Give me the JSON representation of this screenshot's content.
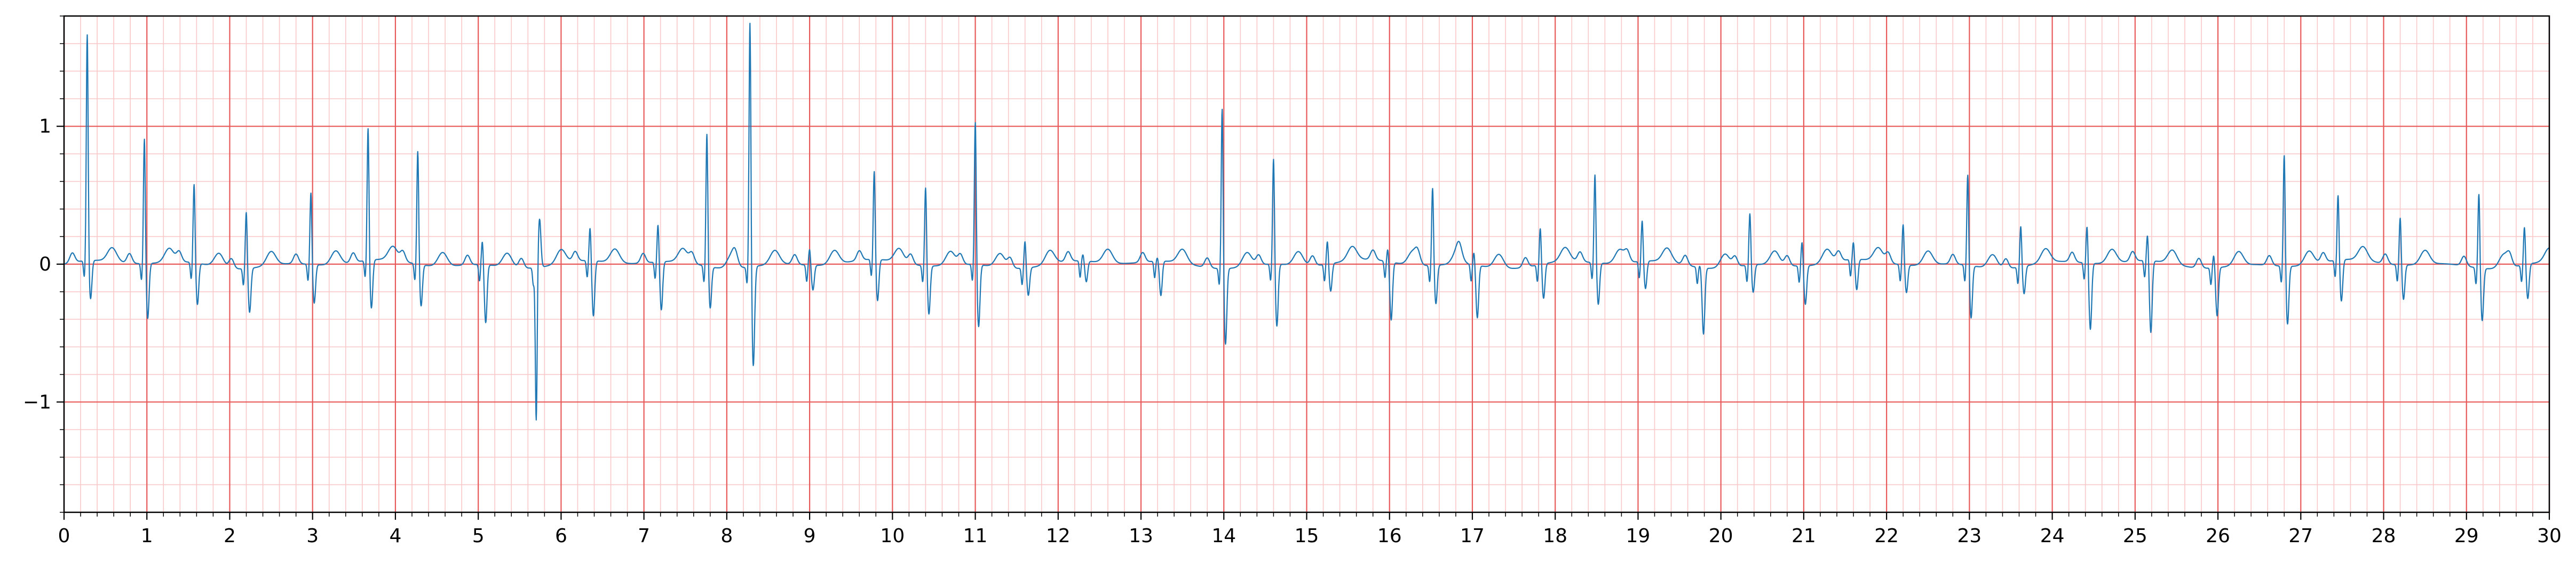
{
  "chart_data": {
    "type": "line",
    "title": "",
    "xlabel": "",
    "ylabel": "",
    "xlim": [
      0,
      30
    ],
    "ylim": [
      -1.8,
      1.8
    ],
    "x_ticks": [
      0,
      1,
      2,
      3,
      4,
      5,
      6,
      7,
      8,
      9,
      10,
      11,
      12,
      13,
      14,
      15,
      16,
      17,
      18,
      19,
      20,
      21,
      22,
      23,
      24,
      25,
      26,
      27,
      28,
      29,
      30
    ],
    "x_tick_labels": [
      "0",
      "1",
      "2",
      "3",
      "4",
      "5",
      "6",
      "7",
      "8",
      "9",
      "10",
      "11",
      "12",
      "13",
      "14",
      "15",
      "16",
      "17",
      "18",
      "19",
      "20",
      "21",
      "22",
      "23",
      "24",
      "25",
      "26",
      "27",
      "28",
      "29",
      "30"
    ],
    "y_ticks": [
      -1,
      0,
      1
    ],
    "y_tick_labels": [
      "−1",
      "0",
      "1"
    ],
    "grid": {
      "major": {
        "x_step": 1,
        "y_step": 1,
        "color": "#e85a5a"
      },
      "minor": {
        "x_step": 0.2,
        "y_step": 0.2,
        "color": "#f9c8c8"
      }
    },
    "series": [
      {
        "color": "#1f77b4",
        "beats": [
          {
            "t": 0.28,
            "r": 1.65,
            "s": -0.28
          },
          {
            "t": 0.97,
            "r": 0.92,
            "s": -0.4
          },
          {
            "t": 1.57,
            "r": 0.58,
            "s": -0.3
          },
          {
            "t": 2.2,
            "r": 0.42,
            "s": -0.32
          },
          {
            "t": 2.98,
            "r": 0.53,
            "s": -0.28
          },
          {
            "t": 3.67,
            "r": 0.97,
            "s": -0.35
          },
          {
            "t": 4.27,
            "r": 0.83,
            "s": -0.3
          },
          {
            "t": 5.05,
            "r": 0.18,
            "s": -0.42
          },
          {
            "t": 5.7,
            "r": -1.12,
            "s": 0.35
          },
          {
            "t": 6.35,
            "r": 0.25,
            "s": -0.4
          },
          {
            "t": 7.17,
            "r": 0.28,
            "s": -0.35
          },
          {
            "t": 7.76,
            "r": 0.97,
            "s": -0.3
          },
          {
            "t": 8.28,
            "r": 1.8,
            "s": -0.72
          },
          {
            "t": 9.0,
            "r": 0.12,
            "s": -0.18
          },
          {
            "t": 9.78,
            "r": 0.65,
            "s": -0.3
          },
          {
            "t": 10.4,
            "r": 0.58,
            "s": -0.35
          },
          {
            "t": 11.0,
            "r": 1.05,
            "s": -0.45
          },
          {
            "t": 11.6,
            "r": 0.2,
            "s": -0.2
          },
          {
            "t": 12.3,
            "r": 0.05,
            "s": -0.15
          },
          {
            "t": 13.2,
            "r": 0.03,
            "s": -0.25
          },
          {
            "t": 13.98,
            "r": 1.18,
            "s": -0.55
          },
          {
            "t": 14.6,
            "r": 0.78,
            "s": -0.45
          },
          {
            "t": 15.25,
            "r": 0.17,
            "s": -0.2
          },
          {
            "t": 15.98,
            "r": 0.1,
            "s": -0.42
          },
          {
            "t": 16.52,
            "r": 0.57,
            "s": -0.28
          },
          {
            "t": 17.02,
            "r": 0.1,
            "s": -0.38
          },
          {
            "t": 17.82,
            "r": 0.27,
            "s": -0.25
          },
          {
            "t": 18.48,
            "r": 0.65,
            "s": -0.3
          },
          {
            "t": 19.05,
            "r": 0.3,
            "s": -0.2
          },
          {
            "t": 19.75,
            "r": 0.02,
            "s": -0.48
          },
          {
            "t": 20.35,
            "r": 0.38,
            "s": -0.2
          },
          {
            "t": 20.98,
            "r": 0.18,
            "s": -0.28
          },
          {
            "t": 21.6,
            "r": 0.13,
            "s": -0.22
          },
          {
            "t": 22.2,
            "r": 0.3,
            "s": -0.2
          },
          {
            "t": 22.98,
            "r": 0.67,
            "s": -0.38
          },
          {
            "t": 23.62,
            "r": 0.3,
            "s": -0.2
          },
          {
            "t": 24.42,
            "r": 0.28,
            "s": -0.48
          },
          {
            "t": 25.15,
            "r": 0.2,
            "s": -0.52
          },
          {
            "t": 25.95,
            "r": 0.1,
            "s": -0.35
          },
          {
            "t": 26.8,
            "r": 0.82,
            "s": -0.42
          },
          {
            "t": 27.45,
            "r": 0.48,
            "s": -0.3
          },
          {
            "t": 28.2,
            "r": 0.35,
            "s": -0.25
          },
          {
            "t": 29.15,
            "r": 0.55,
            "s": -0.38
          },
          {
            "t": 29.7,
            "r": 0.28,
            "s": -0.25
          }
        ]
      }
    ]
  }
}
